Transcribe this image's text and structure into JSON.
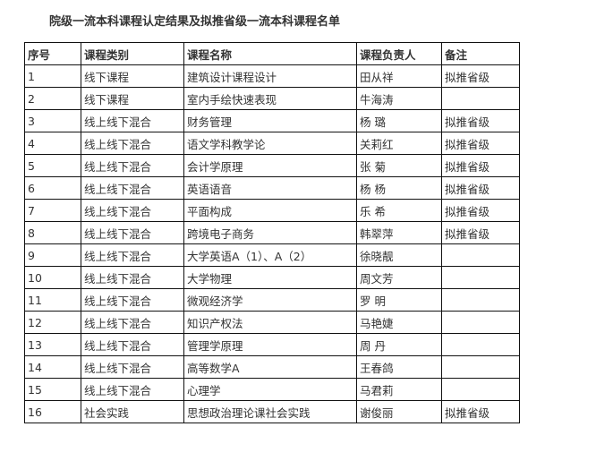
{
  "title": "院级一流本科课程认定结果及拟推省级一流本科课程名单",
  "headers": [
    "序号",
    "课程类别",
    "课程名称",
    "课程负责人",
    "备注"
  ],
  "rows": [
    [
      "1",
      "线下课程",
      "建筑设计课程设计",
      "田从祥",
      "拟推省级"
    ],
    [
      "2",
      "线下课程",
      "室内手绘快速表现",
      "牛海涛",
      ""
    ],
    [
      "3",
      "线上线下混合",
      "财务管理",
      "杨 璐",
      "拟推省级"
    ],
    [
      "4",
      "线上线下混合",
      "语文学科教学论",
      "关莉红",
      "拟推省级"
    ],
    [
      "5",
      "线上线下混合",
      "会计学原理",
      "张 菊",
      "拟推省级"
    ],
    [
      "6",
      "线上线下混合",
      "英语语音",
      "杨 杨",
      "拟推省级"
    ],
    [
      "7",
      "线上线下混合",
      "平面构成",
      "乐 希",
      "拟推省级"
    ],
    [
      "8",
      "线上线下混合",
      "跨境电子商务",
      "韩翠萍",
      "拟推省级"
    ],
    [
      "9",
      "线上线下混合",
      "大学英语A（1）、A（2）",
      "徐晓靓",
      ""
    ],
    [
      "10",
      "线上线下混合",
      "大学物理",
      "周文芳",
      ""
    ],
    [
      "11",
      "线上线下混合",
      "微观经济学",
      "罗 明",
      ""
    ],
    [
      "12",
      "线上线下混合",
      "知识产权法",
      "马艳婕",
      ""
    ],
    [
      "13",
      "线上线下混合",
      "管理学原理",
      "周 丹",
      ""
    ],
    [
      "14",
      "线上线下混合",
      "高等数学A",
      "王春鸽",
      ""
    ],
    [
      "15",
      "线上线下混合",
      "心理学",
      "马君莉",
      ""
    ],
    [
      "16",
      "社会实践",
      "思想政治理论课社会实践",
      "谢俊丽",
      "拟推省级"
    ]
  ]
}
